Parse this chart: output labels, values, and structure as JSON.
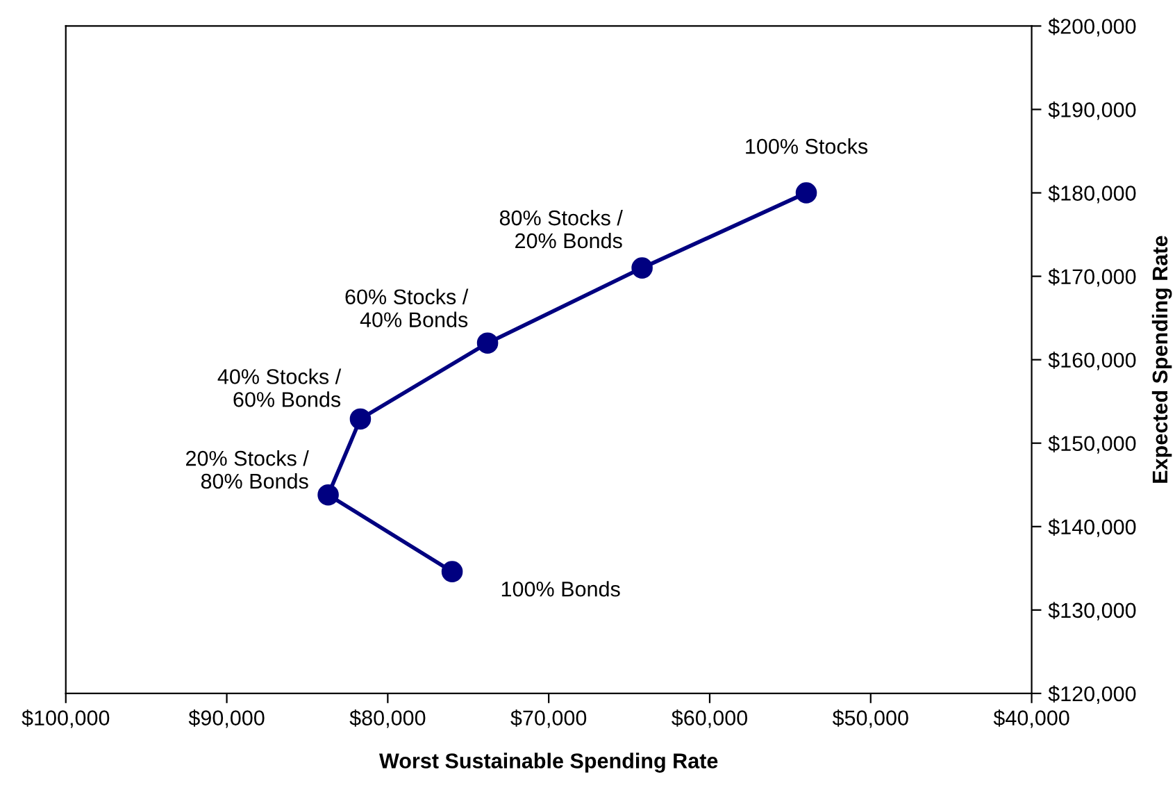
{
  "chart_data": {
    "type": "line",
    "xlabel": "Worst Sustainable Spending Rate",
    "ylabel": "Expected Spending Rate",
    "x": [
      76000,
      83700,
      81700,
      73800,
      64200,
      54000
    ],
    "series": [
      {
        "color": "#000080",
        "values": [
          134600,
          143800,
          152900,
          162000,
          171000,
          180000
        ]
      }
    ],
    "marker": "circle",
    "line_style": "solid",
    "grid": false,
    "legend": false,
    "xlim": [
      100000,
      40000
    ],
    "xticks": [
      {
        "value": 100000,
        "label": "$100,000"
      },
      {
        "value": 90000,
        "label": "$90,000"
      },
      {
        "value": 80000,
        "label": "$80,000"
      },
      {
        "value": 70000,
        "label": "$70,000"
      },
      {
        "value": 60000,
        "label": "$60,000"
      },
      {
        "value": 50000,
        "label": "$50,000"
      },
      {
        "value": 40000,
        "label": "$40,000"
      }
    ],
    "ylim": [
      120000,
      200000
    ],
    "yticks": [
      {
        "value": 120000,
        "label": "$120,000"
      },
      {
        "value": 130000,
        "label": "$130,000"
      },
      {
        "value": 140000,
        "label": "$140,000"
      },
      {
        "value": 150000,
        "label": "$150,000"
      },
      {
        "value": 160000,
        "label": "$160,000"
      },
      {
        "value": 170000,
        "label": "$170,000"
      },
      {
        "value": 180000,
        "label": "$180,000"
      },
      {
        "value": 190000,
        "label": "$190,000"
      },
      {
        "value": 200000,
        "label": "$200,000"
      }
    ],
    "annotations": [
      {
        "text": "100% Bonds",
        "x": 76000,
        "y": 134600
      },
      {
        "text": "20% Stocks /\n80% Bonds",
        "x": 83700,
        "y": 143800
      },
      {
        "text": "40% Stocks /\n60% Bonds",
        "x": 81700,
        "y": 152900
      },
      {
        "text": "60% Stocks /\n40% Bonds",
        "x": 73800,
        "y": 162000
      },
      {
        "text": "80% Stocks /\n20% Bonds",
        "x": 64200,
        "y": 171000
      },
      {
        "text": "100% Stocks",
        "x": 54000,
        "y": 180000
      }
    ]
  }
}
